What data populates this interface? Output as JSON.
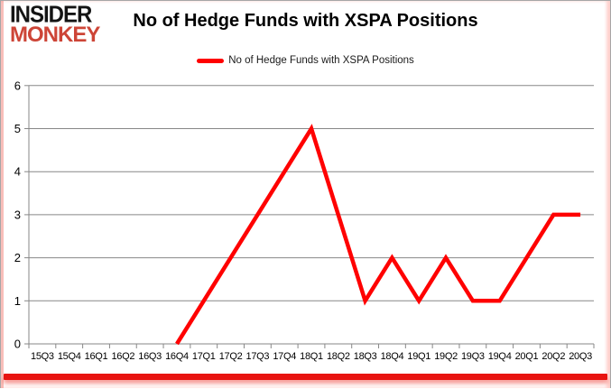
{
  "header": {
    "logo": {
      "line1": "INSIDER",
      "line2": "MONKEY"
    },
    "title": "No of Hedge Funds with XSPA Positions"
  },
  "legend": {
    "label": "No of Hedge Funds with XSPA Positions"
  },
  "chart_data": {
    "type": "line",
    "title": "No of Hedge Funds with XSPA Positions",
    "categories": [
      "15Q3",
      "15Q4",
      "16Q1",
      "16Q2",
      "16Q3",
      "16Q4",
      "17Q1",
      "17Q2",
      "17Q3",
      "17Q4",
      "18Q1",
      "18Q2",
      "18Q3",
      "18Q4",
      "19Q1",
      "19Q2",
      "19Q3",
      "19Q4",
      "20Q1",
      "20Q2",
      "20Q3"
    ],
    "series": [
      {
        "name": "No of Hedge Funds with XSPA Positions",
        "color": "#ff0000",
        "values": [
          null,
          null,
          null,
          null,
          null,
          0,
          1,
          2,
          3,
          4,
          5,
          3,
          1,
          2,
          1,
          2,
          1,
          1,
          2,
          3,
          3
        ]
      }
    ],
    "ylim": [
      0,
      6
    ],
    "yticks": [
      0,
      1,
      2,
      3,
      4,
      5,
      6
    ],
    "grid": true,
    "legend_position": "top-center"
  },
  "colors": {
    "series_red": "#ff0000",
    "bottom_bar_red": "#e81310",
    "logo_red": "#cd4537",
    "grid_gray": "#878787",
    "axis_gray": "#878787",
    "text_black": "#000000"
  }
}
